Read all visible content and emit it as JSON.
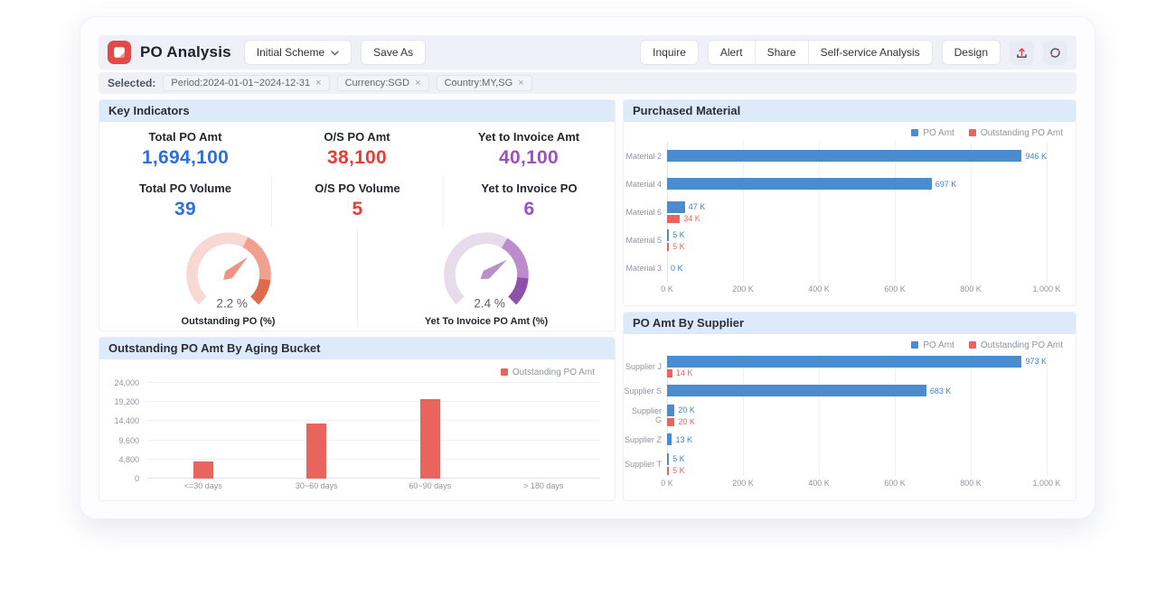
{
  "app": {
    "title": "PO Analysis",
    "scheme": {
      "label": "Initial Scheme"
    },
    "save_as_label": "Save As",
    "actions": {
      "inquire": "Inquire",
      "alert": "Alert",
      "share": "Share",
      "self_service": "Self-service Analysis",
      "design": "Design"
    },
    "icons": {
      "logo": "document-icon",
      "chevron": "chevron-down-icon",
      "upload": "upload-icon",
      "refresh": "refresh-icon"
    }
  },
  "filters": {
    "label": "Selected:",
    "remove_symbol": "×",
    "chips": [
      {
        "text": "Period:2024-01-01~2024-12-31"
      },
      {
        "text": "Currency:SGD"
      },
      {
        "text": "Country:MY,SG"
      }
    ]
  },
  "colors": {
    "bar_blue": "#4a8cce",
    "bar_red": "#e9645d",
    "value_blue": "#2f6fd6",
    "value_red": "#ee3a34",
    "value_purple": "#9b51c0",
    "panel_header_bg": "#ddeafa",
    "axis_text": "#8f949e"
  },
  "key_indicators": {
    "title": "Key Indicators",
    "metrics": [
      {
        "label": "Total PO Amt",
        "value": "1,694,100",
        "color": "#2f6fd6"
      },
      {
        "label": "O/S PO Amt",
        "value": "38,100",
        "color": "#ee3a34"
      },
      {
        "label": "Yet to Invoice Amt",
        "value": "40,100",
        "color": "#9b51c0"
      },
      {
        "label": "Total PO Volume",
        "value": "39",
        "color": "#2f6fd6"
      },
      {
        "label": "O/S PO Volume",
        "value": "5",
        "color": "#ee3a34"
      },
      {
        "label": "Yet to Invoice PO",
        "value": "6",
        "color": "#9b51c0"
      }
    ],
    "gauges": [
      {
        "value": "2.2 %",
        "label": "Outstanding PO (%)",
        "segments": [
          {
            "until": 0.6,
            "color": "#f7d8d2"
          },
          {
            "until": 0.86,
            "color": "#f1a090"
          },
          {
            "until": 1.0,
            "color": "#de6b4c"
          }
        ],
        "needle_color": "#ef9383",
        "needle_angle_deg": 47
      },
      {
        "value": "2.4 %",
        "label": "Yet To Invoice PO Amt (%)",
        "segments": [
          {
            "until": 0.61,
            "color": "#e7dbec"
          },
          {
            "until": 0.85,
            "color": "#bd8ccd"
          },
          {
            "until": 1.0,
            "color": "#8e51aa"
          }
        ],
        "needle_color": "#b78fc9",
        "needle_angle_deg": 54
      }
    ]
  },
  "chart_data": [
    {
      "id": "aging",
      "type": "bar",
      "title": "Outstanding PO Amt By Aging Bucket",
      "legend": [
        {
          "name": "Outstanding PO Amt",
          "color": "#e9645d"
        }
      ],
      "legend_position": "top-right",
      "categories": [
        "<=30 days",
        "30~60 days",
        "60~90 days",
        "> 180 days"
      ],
      "values": [
        4300,
        13900,
        19900,
        0
      ],
      "ylim": [
        0,
        24000
      ],
      "yticks": [
        0,
        4800,
        9600,
        14400,
        19200,
        24000
      ],
      "ytick_labels": [
        "0",
        "4,800",
        "9,600",
        "14,400",
        "19,200",
        "24,000"
      ],
      "bar_color": "#e9645d",
      "grid": true
    },
    {
      "id": "purchased_material",
      "type": "bar-horizontal",
      "title": "Purchased Material",
      "legend": [
        {
          "name": "PO Amt",
          "color": "#4a8cce"
        },
        {
          "name": "Outstanding PO Amt",
          "color": "#e9645d"
        }
      ],
      "legend_position": "top-right",
      "categories": [
        "Material 2",
        "Material 4",
        "Material 6",
        "Material 5",
        "Material 3"
      ],
      "series": [
        {
          "name": "PO Amt",
          "color": "#4a8cce",
          "label_color": "#3b87d0",
          "values": [
            946,
            697,
            47,
            5,
            0
          ],
          "labels": [
            "946 K",
            "697 K",
            "47 K",
            "5 K",
            "0 K"
          ]
        },
        {
          "name": "Outstanding PO Amt",
          "color": "#e9645d",
          "label_color": "#e9645d",
          "values": [
            null,
            null,
            34,
            5,
            null
          ],
          "labels": [
            null,
            null,
            "34 K",
            "5 K",
            null
          ]
        }
      ],
      "xlim": [
        0,
        1000
      ],
      "xticks": [
        {
          "v": 0,
          "label": "0 K"
        },
        {
          "v": 200,
          "label": "200 K"
        },
        {
          "v": 400,
          "label": "400 K"
        },
        {
          "v": 600,
          "label": "600 K"
        },
        {
          "v": 800,
          "label": "800 K"
        },
        {
          "v": 1000,
          "label": "1,000 K"
        }
      ],
      "unit": "K",
      "grid": true
    },
    {
      "id": "po_amt_by_supplier",
      "type": "bar-horizontal",
      "title": "PO Amt By Supplier",
      "legend": [
        {
          "name": "PO Amt",
          "color": "#4a8cce"
        },
        {
          "name": "Outstanding PO Amt",
          "color": "#e9645d"
        }
      ],
      "legend_position": "top-right",
      "categories": [
        "Supplier J",
        "Supplier S",
        "Supplier G",
        "Supplier Z",
        "Supplier T"
      ],
      "series": [
        {
          "name": "PO Amt",
          "color": "#4a8cce",
          "label_color": "#3b87d0",
          "values": [
            973,
            683,
            20,
            13,
            5
          ],
          "labels": [
            "973 K",
            "683 K",
            "20 K",
            "13 K",
            "5 K"
          ]
        },
        {
          "name": "Outstanding PO Amt",
          "color": "#e9645d",
          "label_color": "#e9645d",
          "values": [
            14,
            null,
            20,
            null,
            5
          ],
          "labels": [
            "14 K",
            null,
            "20 K",
            null,
            "5 K"
          ]
        }
      ],
      "xlim": [
        0,
        1000
      ],
      "xticks": [
        {
          "v": 0,
          "label": "0 K"
        },
        {
          "v": 200,
          "label": "200 K"
        },
        {
          "v": 400,
          "label": "400 K"
        },
        {
          "v": 600,
          "label": "600 K"
        },
        {
          "v": 800,
          "label": "800 K"
        },
        {
          "v": 1000,
          "label": "1,000 K"
        }
      ],
      "unit": "K",
      "grid": true
    }
  ]
}
